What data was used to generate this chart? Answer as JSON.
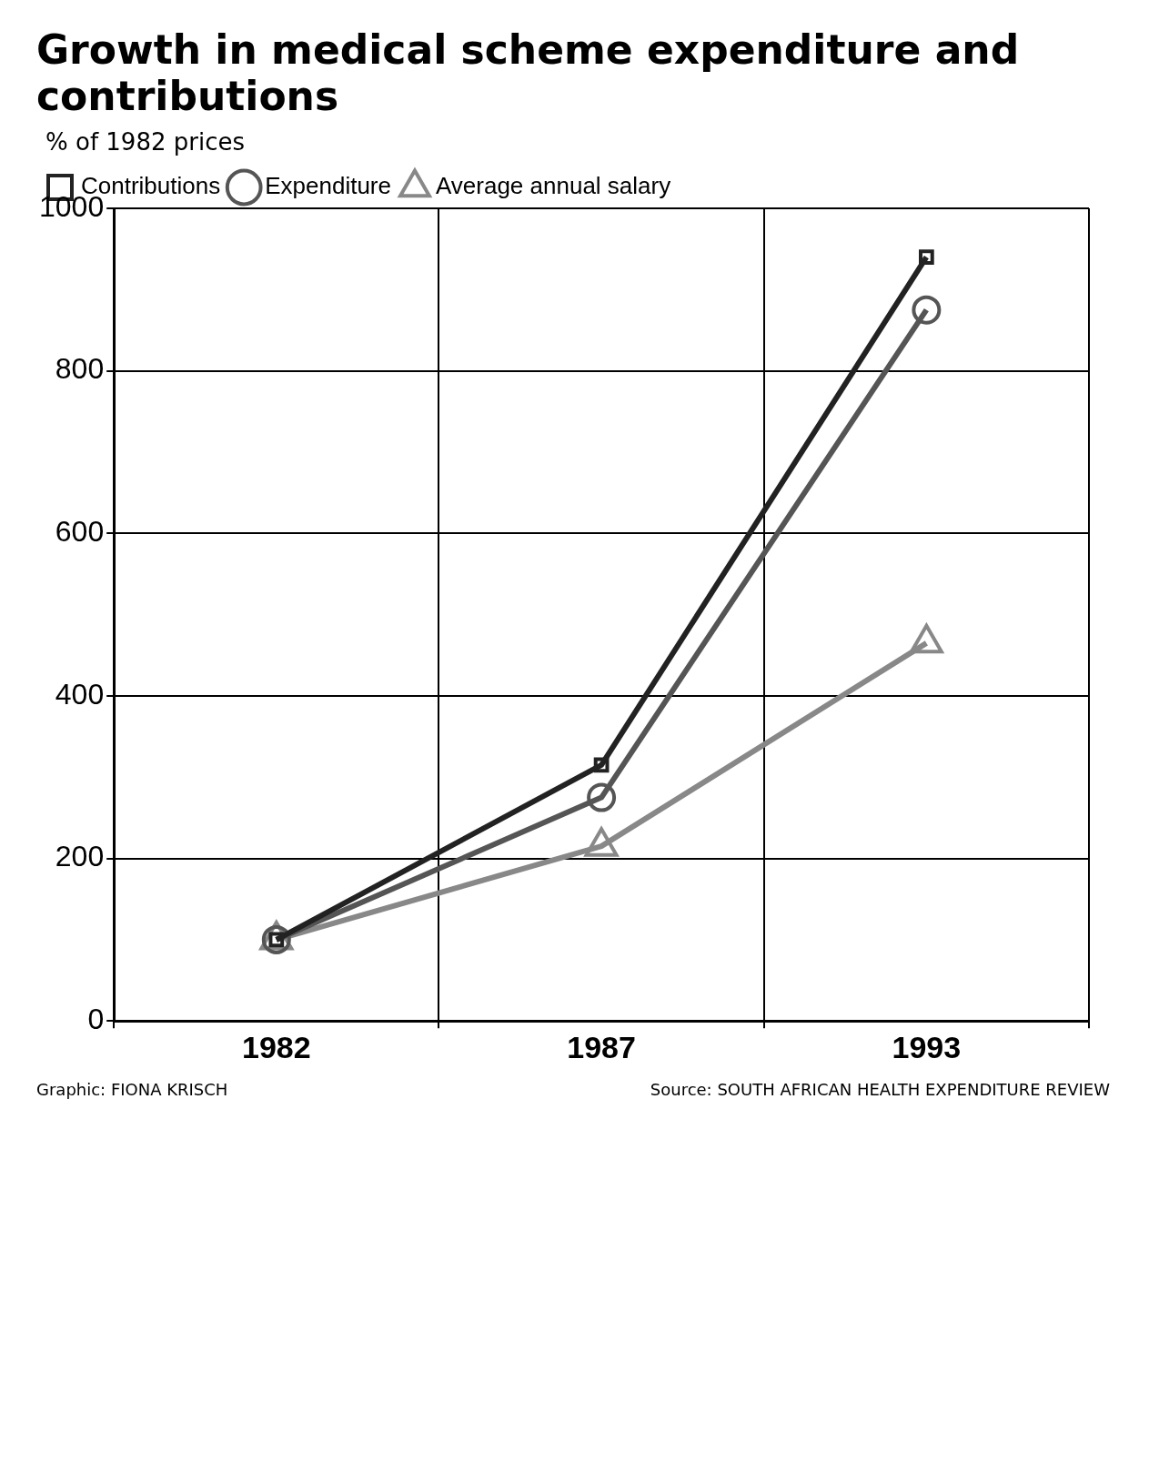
{
  "chart_data": {
    "type": "line",
    "title": "Growth in medical scheme expenditure and contributions",
    "ylabel": "% of 1982 prices",
    "categories": [
      "1982",
      "1987",
      "1993"
    ],
    "series": [
      {
        "name": "Contributions",
        "color": "#222222",
        "values": [
          100,
          315,
          940
        ],
        "marker": "square"
      },
      {
        "name": "Expenditure",
        "color": "#555555",
        "values": [
          100,
          275,
          875
        ],
        "marker": "circle"
      },
      {
        "name": "Average annual salary",
        "color": "#888888",
        "values": [
          100,
          215,
          465
        ],
        "marker": "triangle"
      }
    ],
    "ylim": [
      0,
      1000
    ],
    "yticks": [
      0,
      200,
      400,
      600,
      800,
      1000
    ],
    "grid": true,
    "legend": "top left",
    "annotations": [
      "Graphic: FIONA KRISCH",
      "Source: SOUTH AFRICAN HEALTH EXPENDITURE REVIEW"
    ]
  }
}
